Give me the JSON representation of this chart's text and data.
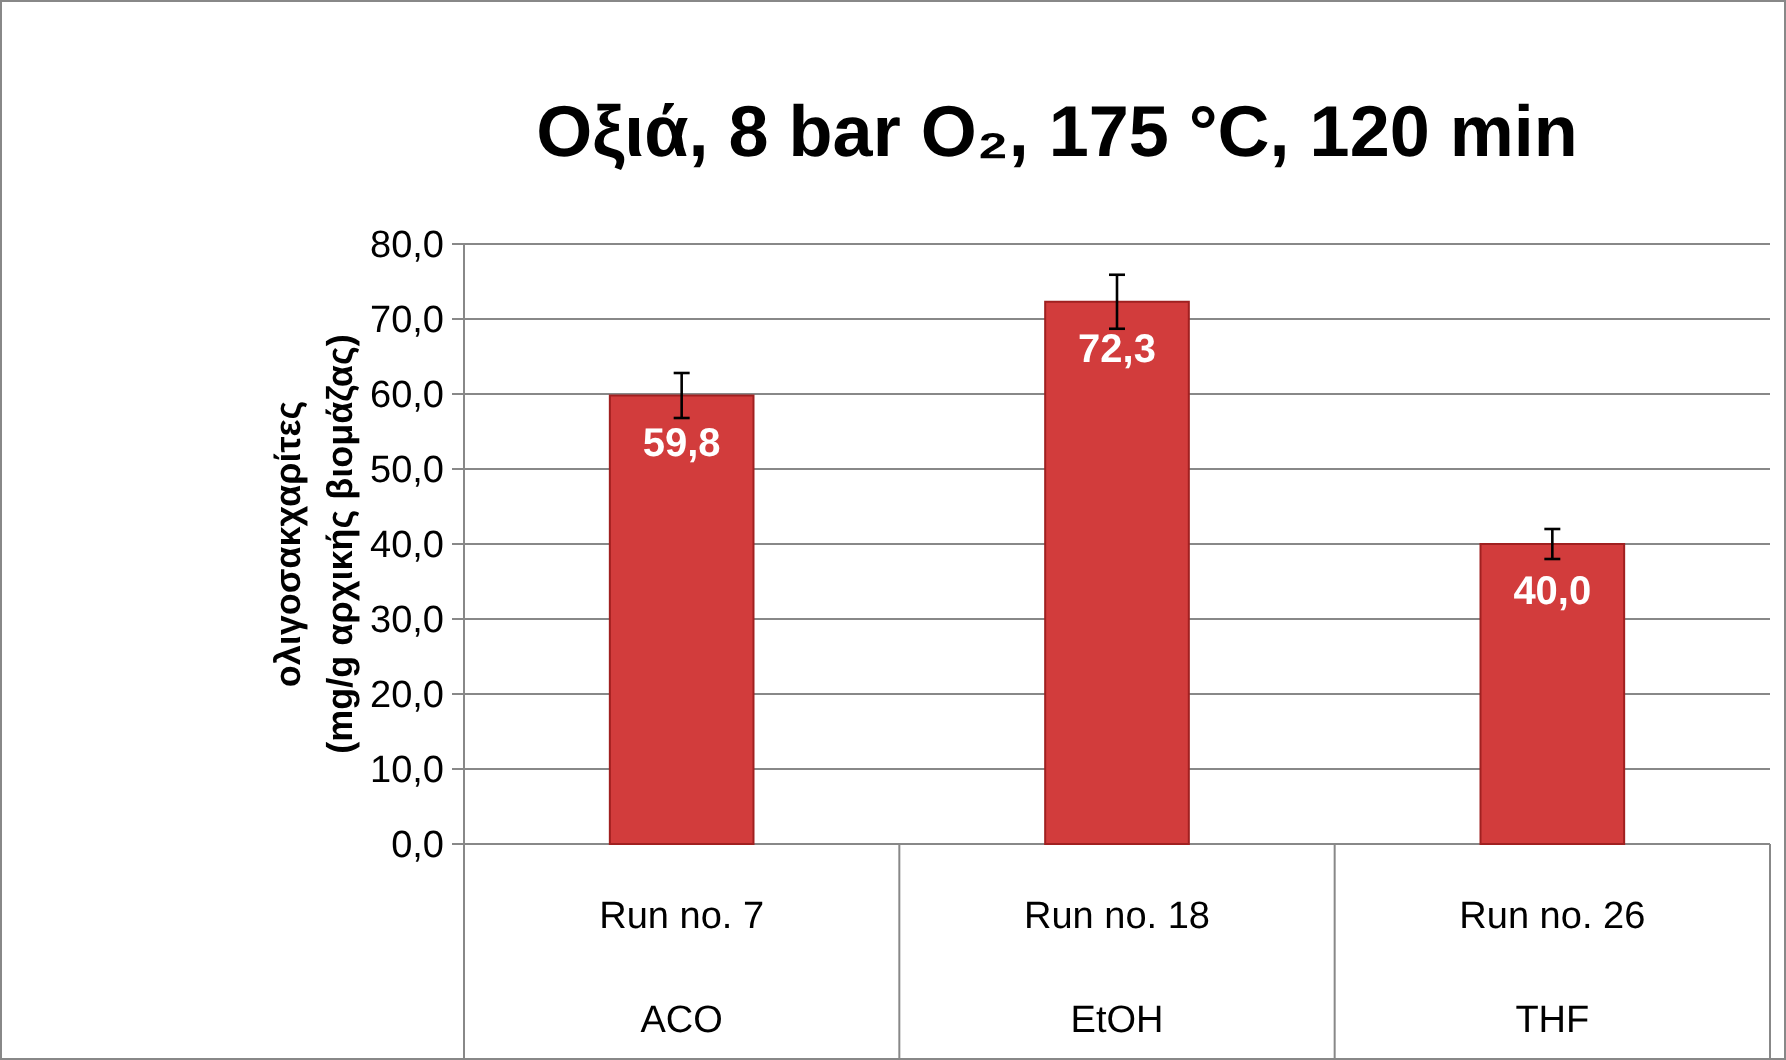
{
  "chart_data": {
    "type": "bar",
    "title": "Οξιά, 8 bar O₂, 175 °C, 120 min",
    "ylabel": "ολιγοσακχαρίτες\n(mg/g αρχικής βιομάζας)",
    "categories": [
      "Run no. 7\nACO",
      "Run no. 18\nEtOH",
      "Run no. 26\nTHF"
    ],
    "values": [
      59.8,
      72.3,
      40.0
    ],
    "color": "#d23c3c",
    "errors": [
      3.0,
      3.6,
      2.0
    ],
    "value_labels": [
      "59,8",
      "72,3",
      "40,0"
    ],
    "ylim": [
      0,
      80
    ],
    "yticks": [
      {
        "value": 0,
        "label": "0,0"
      },
      {
        "value": 10,
        "label": "10,0"
      },
      {
        "value": 20,
        "label": "20,0"
      },
      {
        "value": 30,
        "label": "30,0"
      },
      {
        "value": 40,
        "label": "40,0"
      },
      {
        "value": 50,
        "label": "50,0"
      },
      {
        "value": 60,
        "label": "60,0"
      },
      {
        "value": 70,
        "label": "70,0"
      },
      {
        "value": 80,
        "label": "80,0"
      }
    ],
    "grid": "y"
  }
}
